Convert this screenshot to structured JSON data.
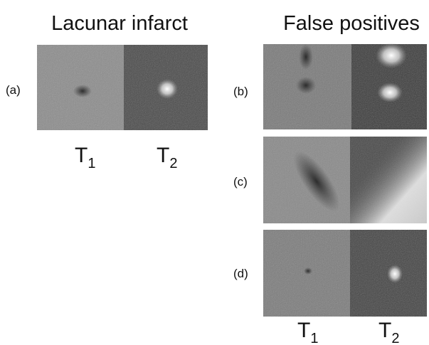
{
  "left": {
    "title": "Lacunar infarct",
    "panel_label": "(a)",
    "columns": [
      {
        "base": "T",
        "sub": "1"
      },
      {
        "base": "T",
        "sub": "2"
      }
    ]
  },
  "right": {
    "title": "False positives",
    "panel_labels": [
      "(b)",
      "(c)",
      "(d)"
    ],
    "columns": [
      {
        "base": "T",
        "sub": "1"
      },
      {
        "base": "T",
        "sub": "2"
      }
    ]
  }
}
